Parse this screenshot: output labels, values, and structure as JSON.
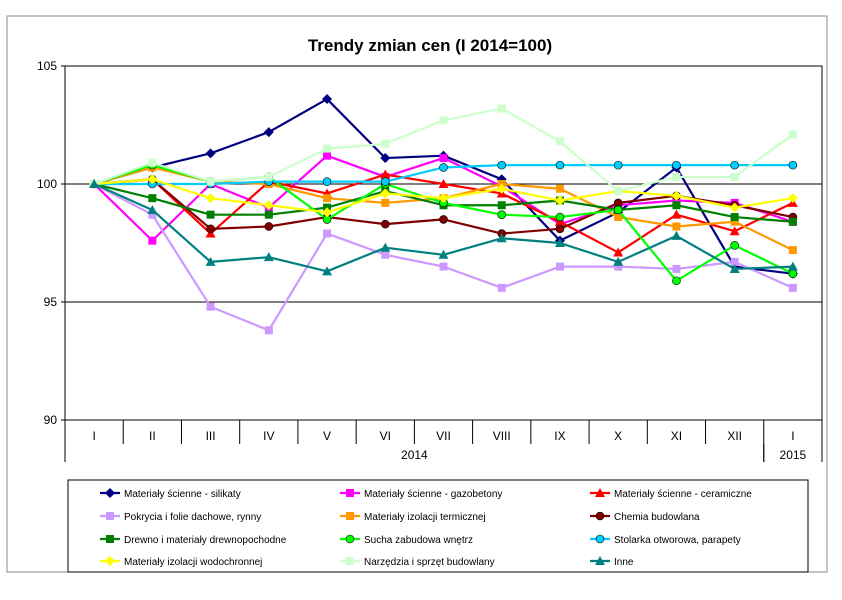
{
  "chart_data": {
    "type": "line",
    "title": "Trendy zmian cen (I 2014=100)",
    "xlabel": "",
    "ylabel": "",
    "ylim": [
      90,
      105
    ],
    "yticks": [
      90,
      95,
      100,
      105
    ],
    "grid": true,
    "legend_position": "bottom",
    "categories": [
      "I",
      "II",
      "III",
      "IV",
      "V",
      "VI",
      "VII",
      "VIII",
      "IX",
      "X",
      "XI",
      "XII",
      "I"
    ],
    "year_groups": [
      {
        "label": "2014",
        "start": 0,
        "end": 11
      },
      {
        "label": "2015",
        "start": 12,
        "end": 12
      }
    ],
    "series": [
      {
        "name": "Materiały ścienne - silikaty",
        "color": "#000080",
        "marker": "diamond",
        "values": [
          100,
          100.7,
          101.3,
          102.2,
          103.6,
          101.1,
          101.2,
          100.2,
          97.6,
          98.8,
          100.7,
          96.5,
          96.2
        ]
      },
      {
        "name": "Materiały ścienne - gazobetony",
        "color": "#ff00ff",
        "marker": "square",
        "values": [
          100,
          97.6,
          100.0,
          99.0,
          101.2,
          100.3,
          101.1,
          99.9,
          98.3,
          99.1,
          99.3,
          99.2,
          98.4
        ]
      },
      {
        "name": "Materiały ścienne - ceramiczne",
        "color": "#ff0000",
        "marker": "triangle",
        "values": [
          100,
          100.2,
          97.9,
          100.1,
          99.6,
          100.4,
          100.0,
          99.6,
          98.4,
          97.1,
          98.7,
          98.0,
          99.2
        ]
      },
      {
        "name": "Pokrycia i folie dachowe, rynny",
        "color": "#cc99ff",
        "marker": "square",
        "values": [
          100,
          98.7,
          94.8,
          93.8,
          97.9,
          97.0,
          96.5,
          95.6,
          96.5,
          96.5,
          96.4,
          96.7,
          95.6
        ]
      },
      {
        "name": "Materiały izolacji termicznej",
        "color": "#ff9900",
        "marker": "square",
        "values": [
          100,
          100.7,
          100.1,
          100.0,
          99.4,
          99.2,
          99.4,
          100.0,
          99.8,
          98.6,
          98.2,
          98.4,
          97.2
        ]
      },
      {
        "name": "Chemia budowlana",
        "color": "#800000",
        "marker": "circle",
        "values": [
          100,
          100.2,
          98.1,
          98.2,
          98.6,
          98.3,
          98.5,
          97.9,
          98.1,
          99.2,
          99.5,
          99.1,
          98.6
        ]
      },
      {
        "name": "Drewno i materiały drewnopochodne",
        "color": "#008000",
        "marker": "square",
        "values": [
          100,
          99.4,
          98.7,
          98.7,
          99.0,
          99.7,
          99.1,
          99.1,
          99.3,
          98.9,
          99.1,
          98.6,
          98.4
        ]
      },
      {
        "name": "Sucha zabudowa wnętrz",
        "color": "#00ff00",
        "marker": "circle",
        "values": [
          100,
          100.8,
          100.1,
          100.3,
          98.5,
          100.0,
          99.2,
          98.7,
          98.6,
          98.9,
          95.9,
          97.4,
          96.2
        ]
      },
      {
        "name": "Stolarka otworowa, parapety",
        "color": "#00ccff",
        "marker": "circle",
        "values": [
          100,
          100.0,
          100.0,
          100.1,
          100.1,
          100.1,
          100.7,
          100.8,
          100.8,
          100.8,
          100.8,
          100.8,
          100.8
        ]
      },
      {
        "name": "Materiały izolacji wodochronnej",
        "color": "#ffff00",
        "marker": "diamond",
        "values": [
          100,
          100.2,
          99.4,
          99.1,
          98.8,
          99.6,
          99.4,
          99.8,
          99.3,
          99.7,
          99.5,
          99.0,
          99.4
        ]
      },
      {
        "name": "Narzędzia i sprzęt budowlany",
        "color": "#ccffcc",
        "marker": "square",
        "values": [
          100,
          100.9,
          100.1,
          100.3,
          101.5,
          101.7,
          102.7,
          103.2,
          101.8,
          99.7,
          100.3,
          100.3,
          102.1
        ]
      },
      {
        "name": "Inne",
        "color": "#008080",
        "marker": "triangle",
        "values": [
          100,
          98.9,
          96.7,
          96.9,
          96.3,
          97.3,
          97.0,
          97.7,
          97.5,
          96.7,
          97.8,
          96.4,
          96.5
        ]
      }
    ]
  }
}
